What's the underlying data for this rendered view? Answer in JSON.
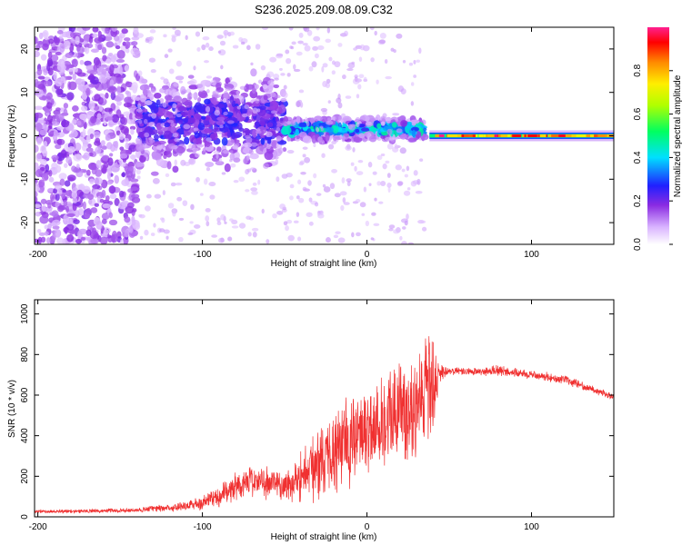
{
  "title": "S236.2025.209.08.09.C32",
  "chart_data": [
    {
      "type": "heatmap",
      "title": "S236.2025.209.08.09.C32",
      "xlabel": "Height of straight line (km)",
      "ylabel": "Frequency (Hz)",
      "xlim": [
        -202,
        150
      ],
      "ylim": [
        -25,
        25
      ],
      "xticks": [
        -200,
        -100,
        0,
        100
      ],
      "yticks": [
        -20,
        -10,
        0,
        10,
        20
      ],
      "colorbar": {
        "label": "Normalized spectral amplitude",
        "range": [
          0,
          1
        ],
        "ticks": [
          0.0,
          0.2,
          0.4,
          0.6,
          0.8
        ]
      },
      "features": [
        {
          "name": "scattered noise",
          "x_range": [
            -202,
            -140
          ],
          "freq_range": [
            -25,
            25
          ],
          "amplitude": 0.12
        },
        {
          "name": "noisy band",
          "x_range": [
            -140,
            -50
          ],
          "freq_center": 3,
          "freq_halfwidth": 7,
          "amplitude": 0.2
        },
        {
          "name": "coherent band",
          "x_range": [
            -50,
            35
          ],
          "freq_center": 1.5,
          "freq_halfwidth": 2,
          "amplitude": 0.35
        },
        {
          "name": "steady tone",
          "x_range": [
            38,
            150
          ],
          "freq_center": 0,
          "amplitude": 0.95
        }
      ]
    },
    {
      "type": "line",
      "xlabel": "Height of straight line (km)",
      "ylabel": "SNR (10 * v/v)",
      "xlim": [
        -202,
        150
      ],
      "ylim": [
        0,
        1070
      ],
      "xticks": [
        -200,
        -100,
        0,
        100
      ],
      "yticks": [
        0,
        200,
        400,
        600,
        800,
        1000
      ],
      "color": "#f03030",
      "series": [
        {
          "x": [
            -202,
            -180,
            -160,
            -140,
            -130,
            -120,
            -110,
            -100,
            -90,
            -80,
            -70,
            -60,
            -50,
            -40,
            -30,
            -20,
            -10,
            0,
            10,
            20,
            30,
            40,
            44,
            50,
            60,
            70,
            80,
            90,
            100,
            110,
            120,
            130,
            140,
            150
          ],
          "y": [
            25,
            28,
            30,
            32,
            40,
            45,
            55,
            70,
            100,
            150,
            180,
            170,
            150,
            200,
            260,
            330,
            380,
            430,
            480,
            520,
            570,
            630,
            700,
            720,
            715,
            715,
            720,
            710,
            700,
            690,
            675,
            650,
            620,
            590
          ],
          "spread": [
            10,
            10,
            12,
            12,
            20,
            22,
            30,
            45,
            60,
            80,
            90,
            90,
            90,
            150,
            200,
            240,
            260,
            260,
            280,
            300,
            320,
            320,
            60,
            25,
            22,
            22,
            35,
            25,
            25,
            25,
            25,
            22,
            20,
            20
          ]
        }
      ]
    }
  ]
}
